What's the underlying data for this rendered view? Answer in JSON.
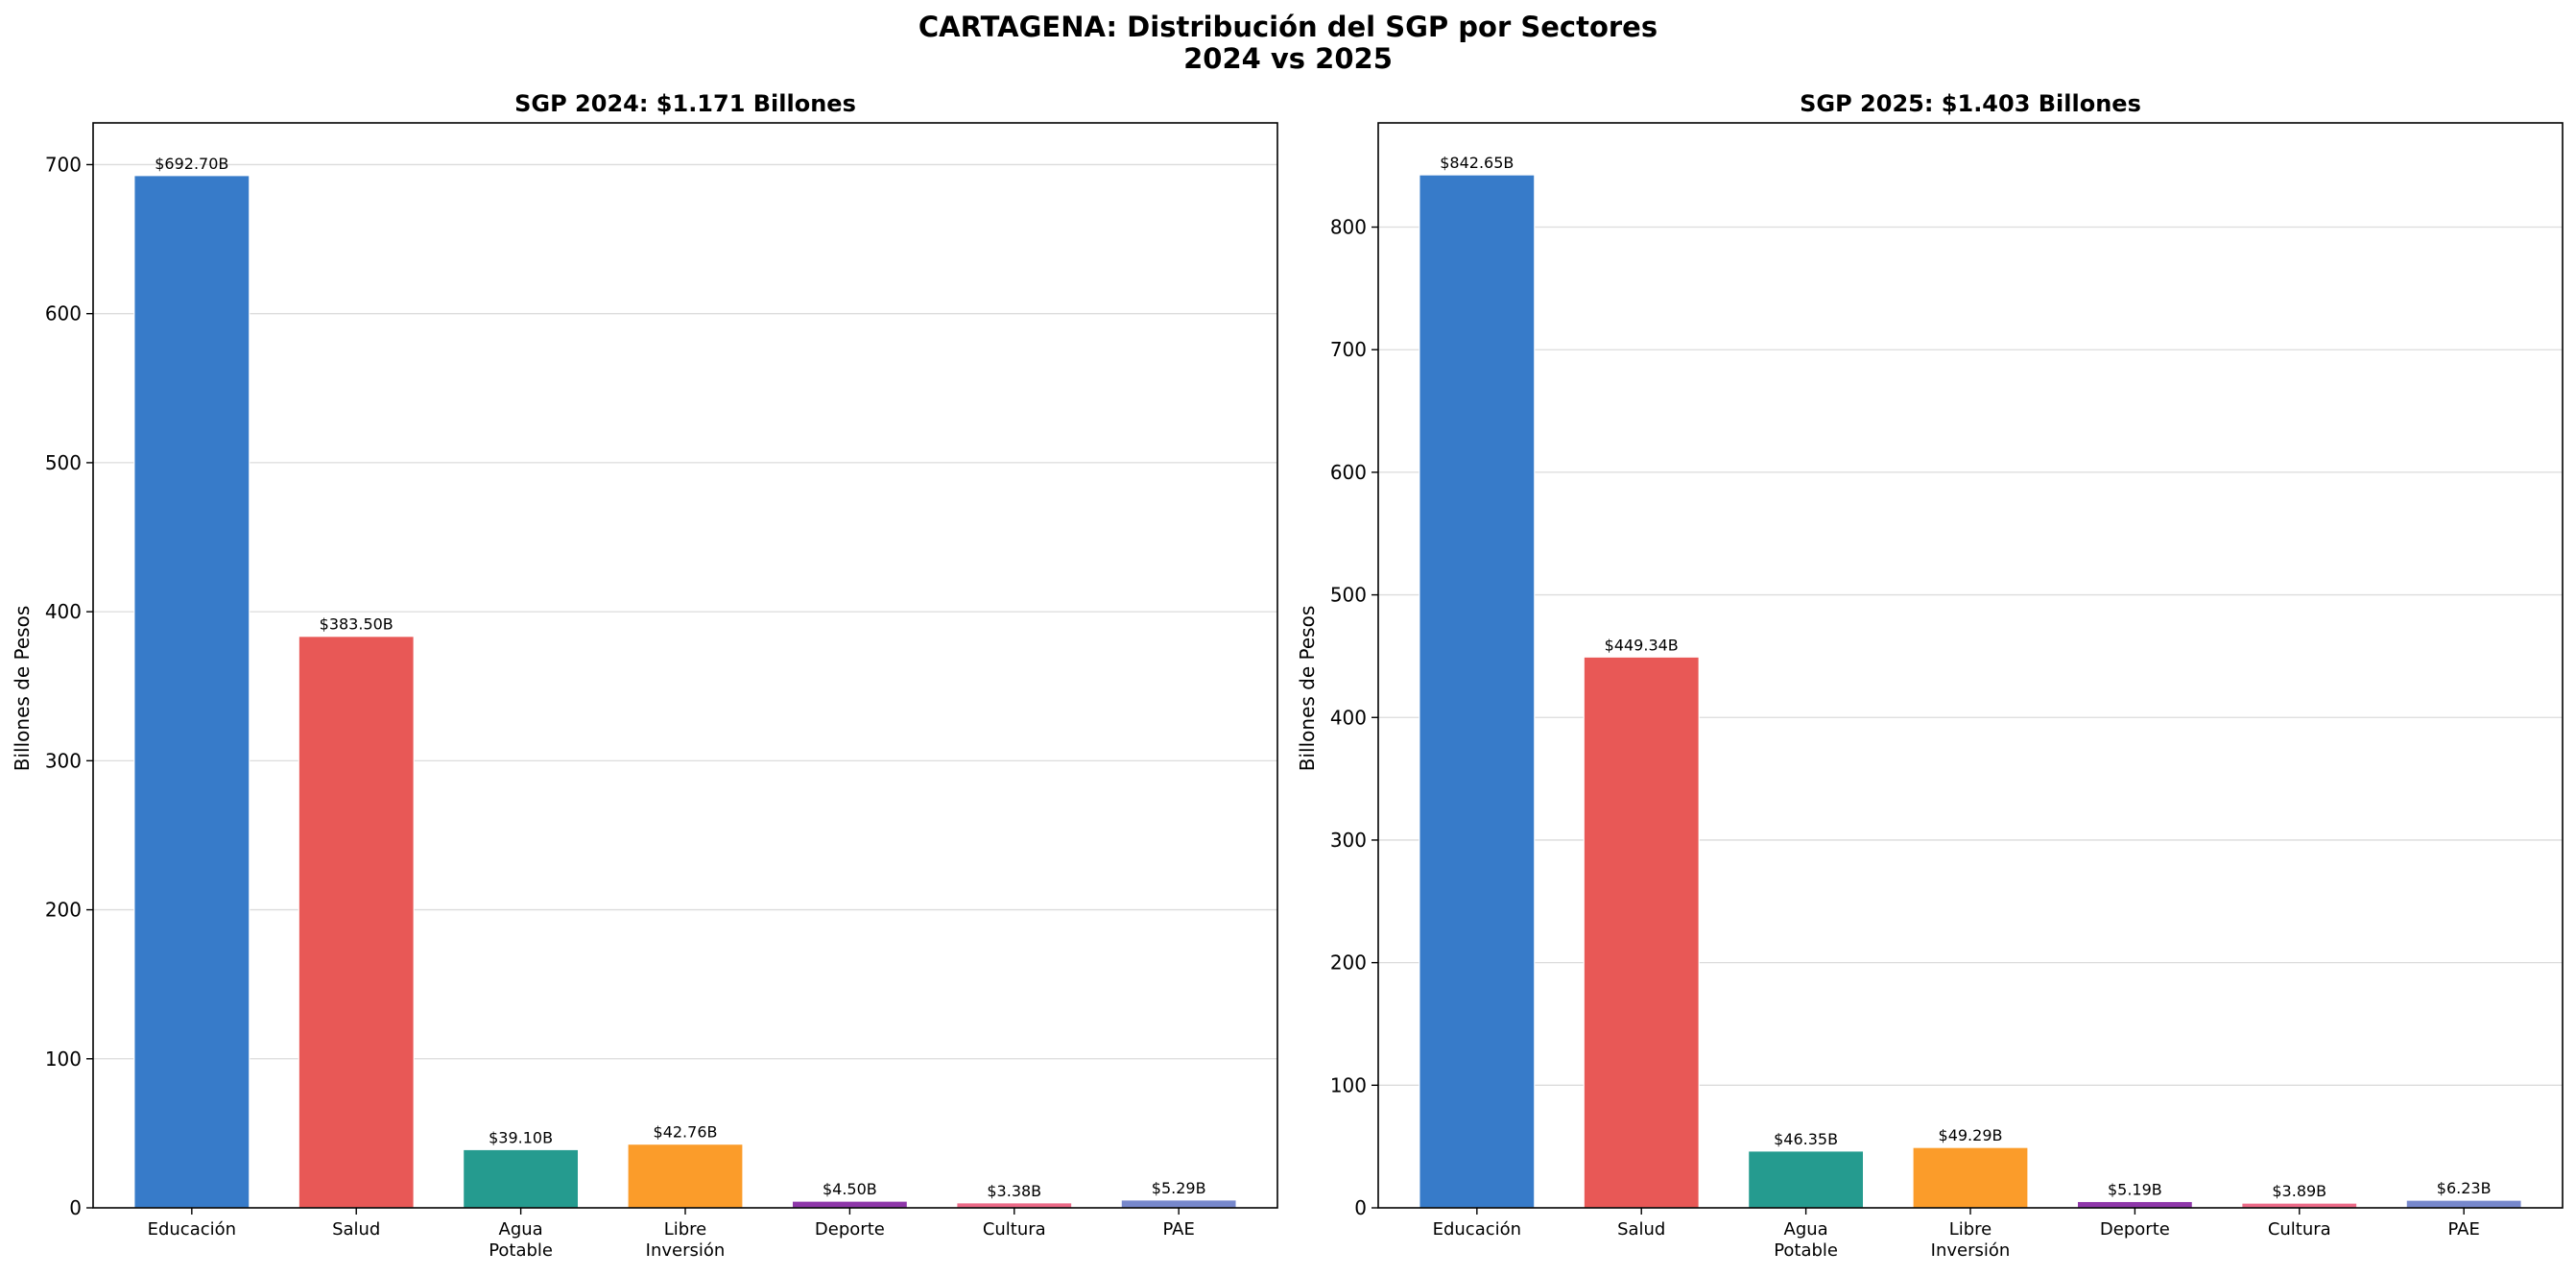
{
  "figure": {
    "title_line1": "CARTAGENA: Distribución del SGP por Sectores",
    "title_line2": "2024 vs 2025"
  },
  "chart_data": [
    {
      "type": "bar",
      "title": "SGP 2024: $1.171 Billones",
      "ylabel": "Billones de Pesos",
      "xlabel": "",
      "categories": [
        [
          "Educación"
        ],
        [
          "Salud"
        ],
        [
          "Agua",
          "Potable"
        ],
        [
          "Libre",
          "Inversión"
        ],
        [
          "Deporte"
        ],
        [
          "Cultura"
        ],
        [
          "PAE"
        ]
      ],
      "values": [
        692.7,
        383.5,
        39.1,
        42.76,
        4.5,
        3.38,
        5.29
      ],
      "data_labels": [
        "$692.70B",
        "$383.50B",
        "$39.10B",
        "$42.76B",
        "$4.50B",
        "$3.38B",
        "$5.29B"
      ],
      "colors": [
        "#377bc9",
        "#e85856",
        "#259b8f",
        "#fb9c2a",
        "#8e37a9",
        "#ec6a88",
        "#7788cc"
      ],
      "ylim": [
        0,
        728
      ],
      "yticks": [
        0,
        100,
        200,
        300,
        400,
        500,
        600,
        700
      ],
      "grid": "y"
    },
    {
      "type": "bar",
      "title": "SGP 2025: $1.403 Billones",
      "ylabel": "Billones de Pesos",
      "xlabel": "",
      "categories": [
        [
          "Educación"
        ],
        [
          "Salud"
        ],
        [
          "Agua",
          "Potable"
        ],
        [
          "Libre",
          "Inversión"
        ],
        [
          "Deporte"
        ],
        [
          "Cultura"
        ],
        [
          "PAE"
        ]
      ],
      "values": [
        842.65,
        449.34,
        46.35,
        49.29,
        5.19,
        3.89,
        6.23
      ],
      "data_labels": [
        "$842.65B",
        "$449.34B",
        "$46.35B",
        "$49.29B",
        "$5.19B",
        "$3.89B",
        "$6.23B"
      ],
      "colors": [
        "#377bc9",
        "#e85856",
        "#259b8f",
        "#fb9c2a",
        "#8e37a9",
        "#ec6a88",
        "#7788cc"
      ],
      "ylim": [
        0,
        885
      ],
      "yticks": [
        0,
        100,
        200,
        300,
        400,
        500,
        600,
        700,
        800
      ],
      "grid": "y"
    }
  ]
}
